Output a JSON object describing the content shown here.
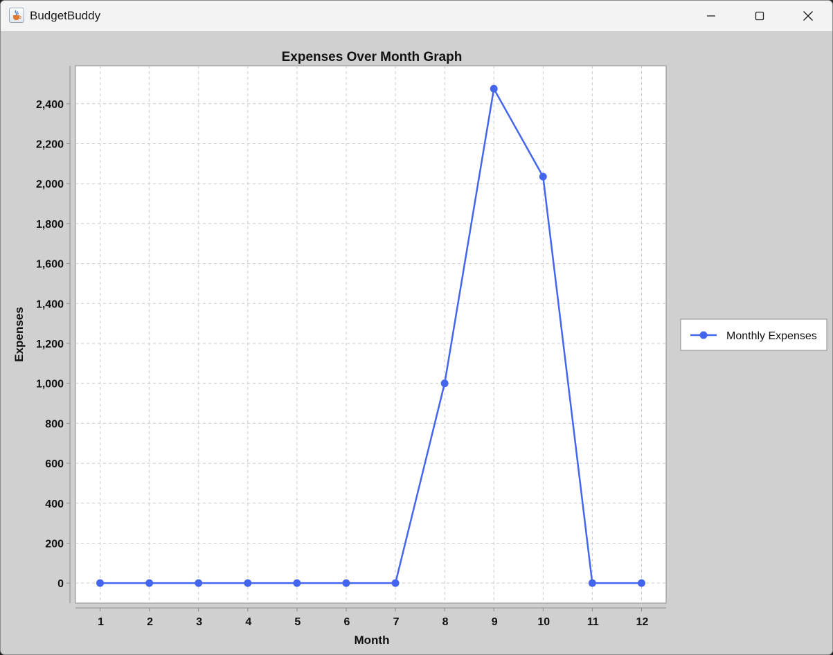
{
  "window": {
    "title": "BudgetBuddy",
    "app_icon": "java-cup-icon",
    "controls": [
      "minimize-icon",
      "maximize-icon",
      "close-icon"
    ]
  },
  "chart_data": {
    "type": "line",
    "title": "Expenses Over Month Graph",
    "xlabel": "Month",
    "ylabel": "Expenses",
    "x": [
      1,
      2,
      3,
      4,
      5,
      6,
      7,
      8,
      9,
      10,
      11,
      12
    ],
    "x_tick_labels": [
      "1",
      "2",
      "3",
      "4",
      "5",
      "6",
      "7",
      "8",
      "9",
      "10",
      "11",
      "12"
    ],
    "y_ticks": [
      0,
      200,
      400,
      600,
      800,
      1000,
      1200,
      1400,
      1600,
      1800,
      2000,
      2200,
      2400
    ],
    "y_tick_labels": [
      "0",
      "200",
      "400",
      "600",
      "800",
      "1,000",
      "1,200",
      "1,400",
      "1,600",
      "1,800",
      "2,000",
      "2,200",
      "2,400"
    ],
    "xlim": [
      0.5,
      12.5
    ],
    "ylim": [
      -100,
      2590
    ],
    "grid": true,
    "legend_position": "right",
    "series": [
      {
        "name": "Monthly Expenses",
        "color": "#4466ee",
        "values": [
          0,
          0,
          0,
          0,
          0,
          0,
          0,
          1000,
          2475,
          2035,
          0,
          0
        ]
      }
    ]
  }
}
